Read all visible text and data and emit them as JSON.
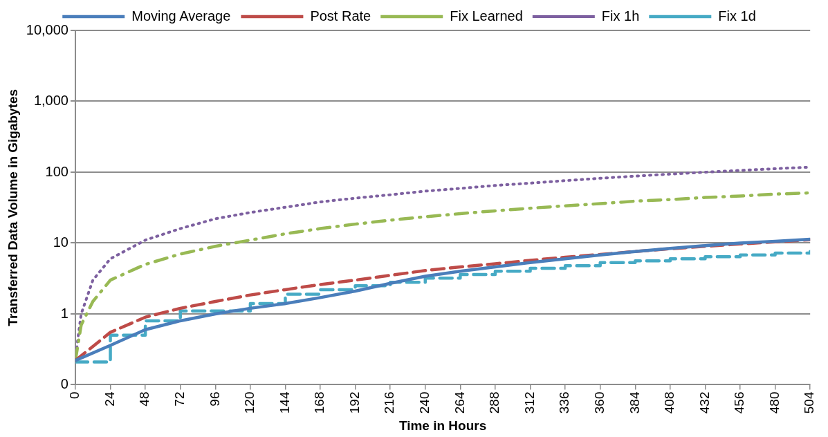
{
  "chart_data": {
    "type": "line",
    "xlabel": "Time in Hours",
    "ylabel": "Transferred Data Volume in Gigabytes",
    "log": "y",
    "grid": "y",
    "legend": "top",
    "marker": "none",
    "xlim": [
      0,
      504
    ],
    "xticks": [
      0,
      24,
      48,
      72,
      96,
      120,
      144,
      168,
      192,
      216,
      240,
      264,
      288,
      312,
      336,
      360,
      384,
      408,
      432,
      456,
      480,
      504
    ],
    "ylim": [
      0.1,
      10000
    ],
    "yticks": [
      {
        "value": 0.1,
        "label": "0"
      },
      1,
      10,
      100,
      {
        "value": 1000,
        "label": "1,000"
      },
      {
        "value": 10000,
        "label": "10,000"
      }
    ],
    "series": [
      {
        "name": "Moving Average",
        "color": "#4a7ebb",
        "line_style": "solid",
        "x": [
          0,
          24,
          48,
          72,
          96,
          120,
          144,
          168,
          192,
          216,
          240,
          264,
          288,
          312,
          336,
          360,
          384,
          408,
          432,
          456,
          480,
          504
        ],
        "values": [
          0.22,
          0.36,
          0.6,
          0.8,
          1.0,
          1.2,
          1.4,
          1.7,
          2.1,
          2.7,
          3.4,
          4.0,
          4.6,
          5.3,
          6.0,
          6.8,
          7.6,
          8.4,
          9.2,
          10,
          10.6,
          11.3
        ]
      },
      {
        "name": "Post Rate",
        "color": "#be4b48",
        "line_style": "dashed",
        "x": [
          0,
          24,
          48,
          72,
          96,
          120,
          144,
          168,
          192,
          216,
          240,
          264,
          288,
          312,
          336,
          360,
          384,
          408,
          432,
          456,
          480,
          504
        ],
        "values": [
          0.22,
          0.55,
          0.9,
          1.2,
          1.5,
          1.85,
          2.2,
          2.6,
          3.0,
          3.5,
          4.1,
          4.6,
          5.1,
          5.7,
          6.3,
          6.9,
          7.6,
          8.3,
          9.0,
          9.7,
          10.4,
          11.1
        ]
      },
      {
        "name": "Fix Learned",
        "color": "#98b954",
        "line_style": "dashdot",
        "x": [
          0,
          4,
          12,
          24,
          48,
          72,
          96,
          120,
          144,
          168,
          192,
          216,
          240,
          264,
          288,
          312,
          336,
          360,
          384,
          408,
          432,
          456,
          480,
          504
        ],
        "values": [
          0.22,
          0.7,
          1.5,
          3.0,
          5.0,
          7.0,
          9.0,
          11,
          13.5,
          16,
          18.5,
          21,
          23.5,
          26,
          28.5,
          31,
          33.5,
          36,
          39,
          41,
          44,
          46,
          49,
          51
        ]
      },
      {
        "name": "Fix 1h",
        "color": "#7d60a0",
        "line_style": "dotted",
        "x": [
          0,
          2,
          4,
          12,
          24,
          48,
          72,
          96,
          120,
          144,
          168,
          192,
          216,
          240,
          264,
          288,
          312,
          336,
          360,
          384,
          408,
          432,
          456,
          480,
          504
        ],
        "values": [
          0.22,
          0.5,
          1.0,
          3,
          6,
          11,
          16,
          22,
          27,
          32,
          38,
          43,
          48,
          54,
          59,
          65,
          70,
          76,
          82,
          88,
          94,
          100,
          106,
          112,
          118
        ]
      },
      {
        "name": "Fix 1d",
        "type": "step",
        "color": "#46aac5",
        "line_style": "dashed",
        "x": [
          0,
          24,
          48,
          72,
          96,
          120,
          144,
          168,
          192,
          216,
          240,
          264,
          288,
          312,
          336,
          360,
          384,
          408,
          432,
          456,
          480,
          504
        ],
        "values": [
          0.21,
          0.5,
          0.8,
          1.1,
          1.1,
          1.4,
          1.9,
          2.2,
          2.5,
          2.8,
          3.2,
          3.6,
          4.0,
          4.4,
          4.8,
          5.3,
          5.6,
          6.0,
          6.4,
          6.8,
          7.2,
          7.6
        ]
      }
    ]
  }
}
